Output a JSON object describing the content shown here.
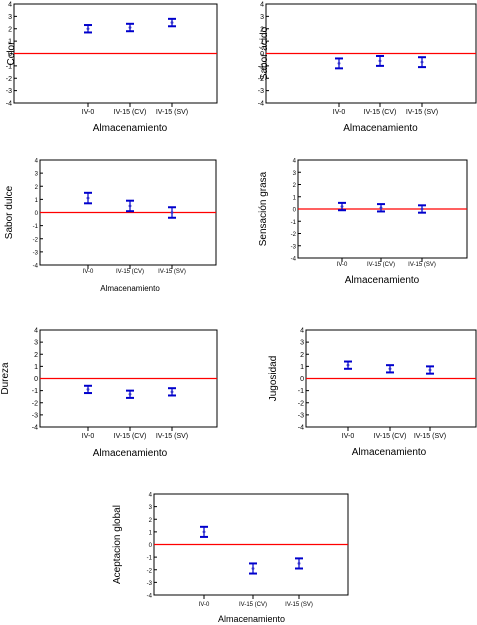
{
  "colors": {
    "ref_line": "#ff0000",
    "error_bar": "#0000cc",
    "marker": "#3333cc",
    "axis": "#000000"
  },
  "chart_data": [
    {
      "type": "scatter",
      "ylabel": "Color",
      "xlabel": "Almacenamiento",
      "categories": [
        "IV-0",
        "IV-15 (CV)",
        "IV-15 (SV)"
      ],
      "yticks": [
        "4",
        "3",
        "2",
        "1",
        "0",
        "-1",
        "-2",
        "-3",
        "-4"
      ],
      "ylim": [
        -4,
        4
      ],
      "ref_line": 0,
      "values": [
        2.0,
        2.1,
        2.5
      ],
      "lower": [
        1.7,
        1.8,
        2.2
      ],
      "upper": [
        2.3,
        2.4,
        2.8
      ]
    },
    {
      "type": "scatter",
      "ylabel": "Sabor ácido",
      "xlabel": "Almacenamiento",
      "categories": [
        "IV-0",
        "IV-15 (CV)",
        "IV-15 (SV)"
      ],
      "yticks": [
        "4",
        "3",
        "2",
        "1",
        "0",
        "-1",
        "-2",
        "-3",
        "-4"
      ],
      "ylim": [
        -4,
        4
      ],
      "ref_line": 0,
      "values": [
        -0.8,
        -0.6,
        -0.7
      ],
      "lower": [
        -1.2,
        -1.0,
        -1.1
      ],
      "upper": [
        -0.4,
        -0.2,
        -0.3
      ]
    },
    {
      "type": "scatter",
      "ylabel": "Sabor dulce",
      "xlabel": "Almacenamiento",
      "categories": [
        "IV-0",
        "IV-15 (CV)",
        "IV-15 (SV)"
      ],
      "yticks": [
        "4",
        "3",
        "2",
        "1",
        "0",
        "-1",
        "-2",
        "-3",
        "-4"
      ],
      "ylim": [
        -4,
        4
      ],
      "ref_line": 0,
      "values": [
        1.1,
        0.5,
        0.0
      ],
      "lower": [
        0.7,
        0.1,
        -0.4
      ],
      "upper": [
        1.5,
        0.9,
        0.4
      ]
    },
    {
      "type": "scatter",
      "ylabel": "Sensación grasa",
      "xlabel": "Almacenamiento",
      "categories": [
        "IV-0",
        "IV-15 (CV)",
        "IV-15 (SV)"
      ],
      "yticks": [
        "4",
        "3",
        "2",
        "1",
        "0",
        "-1",
        "-2",
        "-3",
        "-4"
      ],
      "ylim": [
        -4,
        4
      ],
      "ref_line": 0,
      "values": [
        0.2,
        0.1,
        0.0
      ],
      "lower": [
        -0.1,
        -0.2,
        -0.3
      ],
      "upper": [
        0.5,
        0.4,
        0.3
      ]
    },
    {
      "type": "scatter",
      "ylabel": "Dureza",
      "xlabel": "Almacenamiento",
      "categories": [
        "IV-0",
        "IV-15 (CV)",
        "IV-15 (SV)"
      ],
      "yticks": [
        "4",
        "3",
        "2",
        "1",
        "0",
        "-1",
        "-2",
        "-3",
        "-4"
      ],
      "ylim": [
        -4,
        4
      ],
      "ref_line": 0,
      "values": [
        -0.9,
        -1.3,
        -1.1
      ],
      "lower": [
        -1.2,
        -1.6,
        -1.4
      ],
      "upper": [
        -0.6,
        -1.0,
        -0.8
      ]
    },
    {
      "type": "scatter",
      "ylabel": "Jugosidad",
      "xlabel": "Almacenamiento",
      "categories": [
        "IV-0",
        "IV-15 (CV)",
        "IV-15 (SV)"
      ],
      "yticks": [
        "4",
        "3",
        "2",
        "1",
        "0",
        "-1",
        "-2",
        "-3",
        "-4"
      ],
      "ylim": [
        -4,
        4
      ],
      "ref_line": 0,
      "values": [
        1.1,
        0.8,
        0.7
      ],
      "lower": [
        0.8,
        0.5,
        0.4
      ],
      "upper": [
        1.4,
        1.1,
        1.0
      ]
    },
    {
      "type": "scatter",
      "ylabel": "Aceptacion global",
      "xlabel": "Almacenamiento",
      "categories": [
        "IV-0",
        "IV-15 (CV)",
        "IV-15 (SV)"
      ],
      "yticks": [
        "4",
        "3",
        "2",
        "1",
        "0",
        "-1",
        "-2",
        "-3",
        "-4"
      ],
      "ylim": [
        -4,
        4
      ],
      "ref_line": 0,
      "values": [
        1.0,
        -1.9,
        -1.5
      ],
      "lower": [
        0.6,
        -2.3,
        -1.9
      ],
      "upper": [
        1.4,
        -1.5,
        -1.1
      ]
    }
  ]
}
